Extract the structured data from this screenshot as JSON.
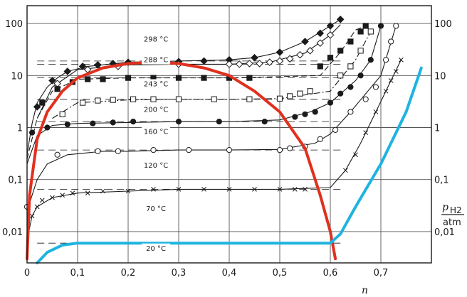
{
  "chart_data": {
    "type": "line",
    "title": "",
    "xlabel": "n",
    "ylabel_symbol": "p",
    "ylabel_subscript": "H2",
    "ylabel_unit": "atm",
    "x_ticks": [
      "0",
      "0,1",
      "0,2",
      "0,3",
      "0,4",
      "0,5",
      "0,6",
      "0,7"
    ],
    "y_ticks": [
      "0,01",
      "0,1",
      "1",
      "10",
      "100"
    ],
    "xlim": [
      0,
      0.8
    ],
    "ylim": [
      0.0025,
      220
    ],
    "y_scale": "log",
    "grid": true,
    "colors": {
      "red": "#e0301e",
      "cyan": "#1fb3e0",
      "ink": "#1a1a1a",
      "grid": "#555555"
    },
    "series": [
      {
        "name": "298 °C",
        "marker": "diamond",
        "style": "solid",
        "points": [
          [
            0.0,
            0.3
          ],
          [
            0.01,
            1.2
          ],
          [
            0.02,
            3
          ],
          [
            0.04,
            6
          ],
          [
            0.06,
            9
          ],
          [
            0.08,
            12
          ],
          [
            0.12,
            15
          ],
          [
            0.2,
            18
          ],
          [
            0.3,
            19
          ],
          [
            0.4,
            20
          ],
          [
            0.45,
            22
          ],
          [
            0.5,
            28
          ],
          [
            0.55,
            45
          ],
          [
            0.6,
            90
          ],
          [
            0.62,
            120
          ]
        ],
        "marked": [
          [
            0.02,
            2.5
          ],
          [
            0.05,
            8
          ],
          [
            0.08,
            12
          ],
          [
            0.11,
            15
          ],
          [
            0.14,
            16
          ],
          [
            0.17,
            17
          ],
          [
            0.2,
            18
          ],
          [
            0.25,
            19
          ],
          [
            0.3,
            18.5
          ],
          [
            0.35,
            19
          ],
          [
            0.4,
            20
          ],
          [
            0.45,
            22
          ],
          [
            0.5,
            28
          ],
          [
            0.55,
            45
          ],
          [
            0.58,
            65
          ],
          [
            0.6,
            90
          ],
          [
            0.62,
            120
          ]
        ],
        "label": {
          "text": "298 °C",
          "x": 0.255,
          "y": 45
        }
      },
      {
        "name": "288 °C",
        "marker": "diamond-open",
        "style": "solid",
        "points": [
          [
            0.02,
            1.5
          ],
          [
            0.05,
            6
          ],
          [
            0.1,
            13
          ],
          [
            0.2,
            16
          ],
          [
            0.3,
            16.5
          ],
          [
            0.4,
            16.5
          ],
          [
            0.48,
            18
          ],
          [
            0.55,
            27
          ],
          [
            0.6,
            60
          ],
          [
            0.62,
            95
          ]
        ],
        "marked": [
          [
            0.06,
            7
          ],
          [
            0.12,
            13
          ],
          [
            0.18,
            15
          ],
          [
            0.3,
            16.5
          ],
          [
            0.4,
            16.5
          ],
          [
            0.42,
            16.5
          ],
          [
            0.44,
            17
          ],
          [
            0.46,
            17
          ],
          [
            0.48,
            18
          ],
          [
            0.5,
            19
          ],
          [
            0.52,
            21
          ],
          [
            0.54,
            25
          ],
          [
            0.56,
            30
          ],
          [
            0.58,
            42
          ],
          [
            0.6,
            60
          ]
        ],
        "label": {
          "text": "288 °C",
          "x": 0.255,
          "y": 18
        }
      },
      {
        "name": "243 °C",
        "marker": "square",
        "style": "dashed",
        "points": [
          [
            0.0,
            0.25
          ],
          [
            0.02,
            1.5
          ],
          [
            0.05,
            5
          ],
          [
            0.1,
            8.5
          ],
          [
            0.2,
            9
          ],
          [
            0.3,
            9
          ],
          [
            0.4,
            9
          ],
          [
            0.5,
            9.5
          ],
          [
            0.58,
            10
          ],
          [
            0.62,
            28
          ],
          [
            0.65,
            75
          ],
          [
            0.67,
            90
          ]
        ],
        "marked": [
          [
            0.03,
            3
          ],
          [
            0.06,
            5.5
          ],
          [
            0.09,
            7.5
          ],
          [
            0.12,
            8.5
          ],
          [
            0.15,
            8.5
          ],
          [
            0.2,
            9
          ],
          [
            0.25,
            9
          ],
          [
            0.3,
            9
          ],
          [
            0.35,
            9
          ],
          [
            0.4,
            9
          ],
          [
            0.44,
            9
          ],
          [
            0.58,
            15
          ],
          [
            0.6,
            22
          ],
          [
            0.62,
            30
          ],
          [
            0.64,
            45
          ],
          [
            0.66,
            70
          ],
          [
            0.67,
            90
          ]
        ],
        "label": {
          "text": "243 °C",
          "x": 0.255,
          "y": 6.2
        }
      },
      {
        "name": "200 °C",
        "marker": "square-open",
        "style": "dashdot",
        "points": [
          [
            0.05,
            1.5
          ],
          [
            0.1,
            3
          ],
          [
            0.2,
            3.4
          ],
          [
            0.3,
            3.5
          ],
          [
            0.4,
            3.5
          ],
          [
            0.5,
            3.6
          ],
          [
            0.6,
            5
          ],
          [
            0.65,
            20
          ],
          [
            0.68,
            70
          ]
        ],
        "marked": [
          [
            0.07,
            1.8
          ],
          [
            0.11,
            3
          ],
          [
            0.14,
            3.3
          ],
          [
            0.17,
            3.4
          ],
          [
            0.21,
            3.5
          ],
          [
            0.25,
            3.5
          ],
          [
            0.3,
            3.5
          ],
          [
            0.37,
            3.5
          ],
          [
            0.44,
            3.5
          ],
          [
            0.5,
            3.6
          ],
          [
            0.52,
            4
          ],
          [
            0.54,
            4.5
          ],
          [
            0.56,
            5
          ],
          [
            0.62,
            10
          ],
          [
            0.64,
            15
          ],
          [
            0.66,
            30
          ],
          [
            0.68,
            70
          ]
        ],
        "label": {
          "text": "200 °C",
          "x": 0.255,
          "y": 2
        }
      },
      {
        "name": "160 °C",
        "marker": "circle",
        "style": "solid",
        "points": [
          [
            0.0,
            0.2
          ],
          [
            0.02,
            0.7
          ],
          [
            0.05,
            1.1
          ],
          [
            0.1,
            1.2
          ],
          [
            0.2,
            1.25
          ],
          [
            0.3,
            1.3
          ],
          [
            0.4,
            1.3
          ],
          [
            0.5,
            1.4
          ],
          [
            0.56,
            2
          ],
          [
            0.6,
            3
          ],
          [
            0.65,
            8
          ],
          [
            0.68,
            20
          ],
          [
            0.7,
            90
          ]
        ],
        "marked": [
          [
            0.01,
            0.8
          ],
          [
            0.04,
            1
          ],
          [
            0.08,
            1.15
          ],
          [
            0.13,
            1.2
          ],
          [
            0.17,
            1.25
          ],
          [
            0.21,
            1.3
          ],
          [
            0.3,
            1.3
          ],
          [
            0.38,
            1.3
          ],
          [
            0.47,
            1.3
          ],
          [
            0.53,
            1.6
          ],
          [
            0.55,
            1.8
          ],
          [
            0.57,
            2
          ],
          [
            0.6,
            3
          ],
          [
            0.62,
            4.5
          ],
          [
            0.64,
            6
          ],
          [
            0.66,
            10
          ],
          [
            0.68,
            20
          ],
          [
            0.7,
            90
          ]
        ],
        "label": {
          "text": "160 °C",
          "x": 0.255,
          "y": 0.75
        }
      },
      {
        "name": "120 °C",
        "marker": "circle-open",
        "style": "solid",
        "points": [
          [
            0.0,
            0.025
          ],
          [
            0.02,
            0.1
          ],
          [
            0.04,
            0.2
          ],
          [
            0.08,
            0.3
          ],
          [
            0.15,
            0.35
          ],
          [
            0.2,
            0.35
          ],
          [
            0.3,
            0.37
          ],
          [
            0.4,
            0.37
          ],
          [
            0.5,
            0.38
          ],
          [
            0.57,
            0.5
          ],
          [
            0.6,
            0.75
          ],
          [
            0.64,
            2
          ],
          [
            0.7,
            10
          ],
          [
            0.73,
            90
          ]
        ],
        "marked": [
          [
            0.0,
            0.03
          ],
          [
            0.06,
            0.3
          ],
          [
            0.14,
            0.35
          ],
          [
            0.18,
            0.35
          ],
          [
            0.25,
            0.37
          ],
          [
            0.32,
            0.37
          ],
          [
            0.4,
            0.37
          ],
          [
            0.5,
            0.37
          ],
          [
            0.52,
            0.4
          ],
          [
            0.55,
            0.43
          ],
          [
            0.58,
            0.6
          ],
          [
            0.61,
            0.9
          ],
          [
            0.64,
            2
          ],
          [
            0.67,
            3.5
          ],
          [
            0.69,
            6
          ],
          [
            0.71,
            20
          ],
          [
            0.72,
            45
          ],
          [
            0.73,
            90
          ]
        ],
        "label": {
          "text": "120 °C",
          "x": 0.255,
          "y": 0.17
        }
      },
      {
        "name": "70 °C",
        "marker": "cross",
        "style": "solid",
        "points": [
          [
            0.0,
            0.007
          ],
          [
            0.01,
            0.02
          ],
          [
            0.02,
            0.03
          ],
          [
            0.05,
            0.045
          ],
          [
            0.1,
            0.055
          ],
          [
            0.2,
            0.06
          ],
          [
            0.3,
            0.065
          ],
          [
            0.4,
            0.065
          ],
          [
            0.5,
            0.065
          ],
          [
            0.6,
            0.07
          ],
          [
            0.63,
            0.15
          ],
          [
            0.66,
            0.5
          ],
          [
            0.69,
            2
          ],
          [
            0.72,
            8
          ],
          [
            0.74,
            20
          ]
        ],
        "marked": [
          [
            0.01,
            0.02
          ],
          [
            0.02,
            0.03
          ],
          [
            0.03,
            0.04
          ],
          [
            0.05,
            0.045
          ],
          [
            0.07,
            0.05
          ],
          [
            0.09,
            0.055
          ],
          [
            0.12,
            0.055
          ],
          [
            0.15,
            0.06
          ],
          [
            0.2,
            0.06
          ],
          [
            0.25,
            0.065
          ],
          [
            0.3,
            0.065
          ],
          [
            0.35,
            0.065
          ],
          [
            0.4,
            0.065
          ],
          [
            0.45,
            0.065
          ],
          [
            0.5,
            0.065
          ],
          [
            0.53,
            0.065
          ],
          [
            0.55,
            0.065
          ],
          [
            0.63,
            0.15
          ],
          [
            0.65,
            0.3
          ],
          [
            0.67,
            0.8
          ],
          [
            0.69,
            2
          ],
          [
            0.71,
            5
          ],
          [
            0.72,
            8
          ],
          [
            0.73,
            12
          ],
          [
            0.74,
            20
          ]
        ],
        "label": {
          "text": "70 °C",
          "x": 0.255,
          "y": 0.025
        }
      },
      {
        "name": "20 °C",
        "marker": "none",
        "style": "solid",
        "points": [
          [
            0.02,
            0.0025
          ],
          [
            0.04,
            0.004
          ],
          [
            0.07,
            0.0055
          ],
          [
            0.1,
            0.006
          ],
          [
            0.2,
            0.006
          ],
          [
            0.3,
            0.006
          ],
          [
            0.4,
            0.006
          ],
          [
            0.5,
            0.006
          ],
          [
            0.6,
            0.006
          ],
          [
            0.62,
            0.009
          ],
          [
            0.65,
            0.03
          ],
          [
            0.7,
            0.2
          ],
          [
            0.75,
            2
          ],
          [
            0.78,
            14
          ]
        ],
        "marked": [],
        "label": {
          "text": "20 °C",
          "x": 0.255,
          "y": 0.0043
        }
      }
    ],
    "highlights": [
      {
        "name": "phase boundary",
        "color": "#e0301e",
        "points": [
          [
            0.0,
            0.003
          ],
          [
            0.005,
            0.05
          ],
          [
            0.02,
            0.6
          ],
          [
            0.04,
            2
          ],
          [
            0.07,
            5
          ],
          [
            0.1,
            9
          ],
          [
            0.15,
            14
          ],
          [
            0.2,
            17
          ],
          [
            0.25,
            18
          ],
          [
            0.3,
            17
          ],
          [
            0.35,
            14
          ],
          [
            0.4,
            10
          ],
          [
            0.45,
            5
          ],
          [
            0.5,
            2
          ],
          [
            0.55,
            0.4
          ],
          [
            0.58,
            0.05
          ],
          [
            0.6,
            0.01
          ],
          [
            0.61,
            0.003
          ]
        ]
      },
      {
        "name": "20 °C highlight",
        "color": "#1fb3e0",
        "points": [
          [
            0.02,
            0.0025
          ],
          [
            0.04,
            0.004
          ],
          [
            0.07,
            0.0055
          ],
          [
            0.1,
            0.006
          ],
          [
            0.2,
            0.006
          ],
          [
            0.3,
            0.006
          ],
          [
            0.4,
            0.006
          ],
          [
            0.5,
            0.006
          ],
          [
            0.6,
            0.006
          ],
          [
            0.62,
            0.009
          ],
          [
            0.65,
            0.03
          ],
          [
            0.7,
            0.2
          ],
          [
            0.75,
            2
          ],
          [
            0.78,
            14
          ]
        ]
      }
    ]
  }
}
